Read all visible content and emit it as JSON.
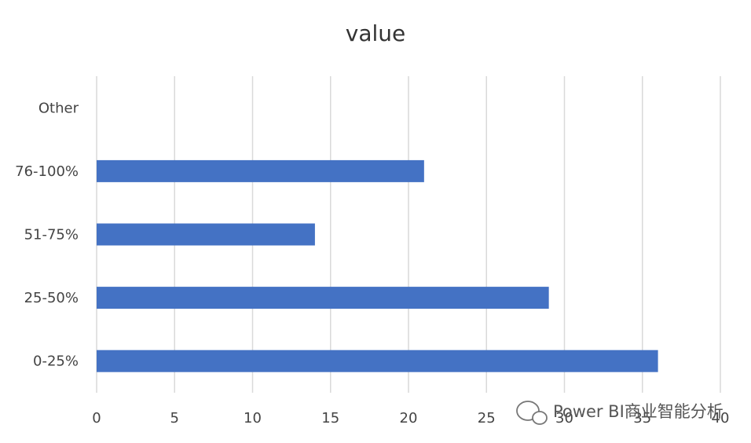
{
  "chart_data": {
    "type": "bar",
    "orientation": "horizontal",
    "title": "value",
    "categories": [
      "0-25%",
      "25-50%",
      "51-75%",
      "76-100%",
      "Other"
    ],
    "values": [
      36,
      29,
      14,
      21,
      null
    ],
    "xlim": [
      0,
      40
    ],
    "x_ticks": [
      0,
      5,
      10,
      15,
      20,
      25,
      30,
      35,
      40
    ],
    "grid": true,
    "legend": "none",
    "bar_color": "#4472C4"
  },
  "watermark": {
    "icon": "chat-bubble-icon",
    "text": "Power BI商业智能分析"
  }
}
